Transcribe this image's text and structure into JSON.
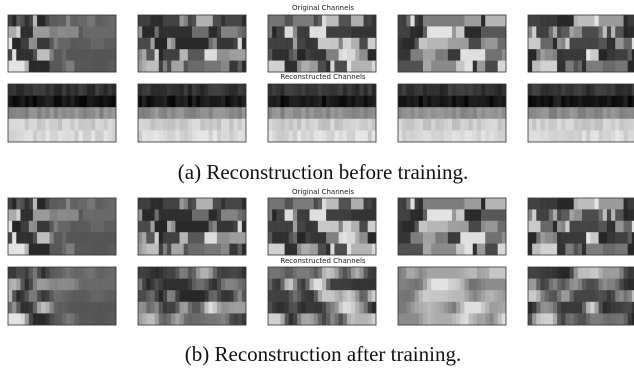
{
  "panels": [
    {
      "original_title": "Original Channels",
      "reconstructed_title": "Reconstructed Channels",
      "caption": "(a) Reconstruction before training."
    },
    {
      "original_title": "Original Channels",
      "reconstructed_title": "Reconstructed Channels",
      "caption": "(b) Reconstruction after training."
    }
  ]
}
